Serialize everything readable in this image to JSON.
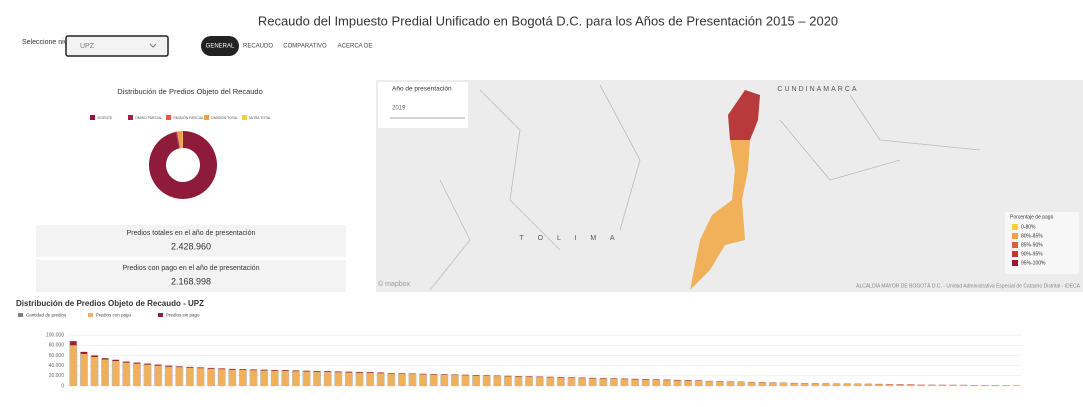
{
  "header": {
    "title": "Recaudo del Impuesto Predial Unificado en Bogotá D.C. para los Años de Presentación 2015 – 2020",
    "selector_label": "Seleccione nivel territorial",
    "selector_value": "UPZ",
    "tabs": [
      "GENERAL",
      "RECAUDO",
      "COMPARATIVO",
      "ACERCA DE"
    ]
  },
  "stats": [
    {
      "label": "Predios totales en el año de presentación",
      "value": "2.428.960"
    },
    {
      "label": "Predios con pago en el año de presentación",
      "value": "2.168.998"
    }
  ],
  "map": {
    "year_label": "Año de presentación",
    "year_value": "2019",
    "regions": [
      "CUNDINAMARCA",
      "T O L I M A"
    ],
    "legend_title": "Porcentaje de pago",
    "legend": [
      "0-80%",
      "80%-85%",
      "85%-90%",
      "90%-95%",
      "95%-100%"
    ],
    "legend_colors": [
      "#f4d03f",
      "#f0a04b",
      "#e05c3a",
      "#c0392b",
      "#8e1b2e"
    ],
    "attribution": "© mapbox",
    "credit": "ALCALDÍA MAYOR DE BOGOTÁ D.C. - Unidad Administrativa Especial de Catastro Distrital - IDECA"
  },
  "chart_data": [
    {
      "type": "pie",
      "title": "Distribución de Predios Objeto del Recaudo",
      "categories": [
        "VIGENTE",
        "OMISO PARCIAL",
        "OMISIÓN PARCIAL",
        "OMISIÓN TOTAL",
        "MORA TOTAL"
      ],
      "values": [
        96.5,
        0.5,
        0.3,
        2.5,
        0.2
      ],
      "colors": [
        "#8e1b3a",
        "#a51f45",
        "#e05c3a",
        "#f0a04b",
        "#f4d03f"
      ]
    },
    {
      "type": "bar",
      "title": "Distribución de Predios Objeto de Recaudo - UPZ",
      "stacked": true,
      "ylim": [
        0,
        110000
      ],
      "yticks": [
        0,
        {
          "value": 20000,
          "label": "20.000"
        },
        {
          "value": 40000,
          "label": "40.000"
        },
        {
          "value": 60000,
          "label": "60.000"
        },
        {
          "value": 80000,
          "label": "80.000"
        },
        {
          "value": 100000,
          "label": "100.000"
        }
      ],
      "grid": true,
      "series": [
        {
          "name": "Cantidad de predios",
          "color": "#7f7f7f",
          "stack": false,
          "values": [
            88000,
            67000,
            60000,
            54500,
            51500,
            48000,
            46000,
            44000,
            42000,
            40000,
            38500,
            37500,
            36500,
            35500,
            34500,
            33500,
            33000,
            32500,
            32000,
            31500,
            31000,
            30500,
            30000,
            29500,
            29000,
            28500,
            28000,
            27500,
            27000,
            26500,
            25500,
            25000,
            24500,
            24000,
            23500,
            23000,
            22500,
            22000,
            21500,
            21000,
            20500,
            20000,
            19500,
            19000,
            18500,
            18000,
            17500,
            17000,
            16500,
            16000,
            15500,
            15000,
            14500,
            14000,
            13500,
            13000,
            12500,
            12000,
            11500,
            11000,
            10000,
            9500,
            9000,
            8500,
            8000,
            7500,
            7000,
            6500,
            6000,
            5500,
            5300,
            5100,
            4900,
            4700,
            4500,
            4300,
            4100,
            3900,
            3700,
            3500,
            3000,
            2800,
            2600,
            2400,
            2200,
            2000,
            1800,
            1600,
            1400,
            1200
          ]
        },
        {
          "name": "Predios con pago",
          "color": "#f0b15a",
          "stack": true,
          "values": [
            80000,
            63000,
            57000,
            52000,
            49000,
            46000,
            44000,
            42000,
            40000,
            38000,
            37000,
            36000,
            35000,
            34000,
            33000,
            32000,
            31500,
            31000,
            30500,
            30000,
            29500,
            29000,
            28500,
            28000,
            27500,
            27000,
            26500,
            26000,
            25500,
            25000,
            24500,
            24000,
            23500,
            23000,
            22500,
            22000,
            21500,
            21000,
            20500,
            20000,
            19500,
            19000,
            18500,
            18000,
            17500,
            17000,
            16500,
            16000,
            15500,
            15000,
            14500,
            14000,
            13500,
            13000,
            12500,
            12000,
            11500,
            11000,
            10500,
            10000,
            9500,
            9000,
            8500,
            8000,
            7500,
            7000,
            6500,
            6000,
            5500,
            5000,
            4800,
            4600,
            4400,
            4200,
            4000,
            3800,
            3600,
            3400,
            3200,
            3000,
            2800,
            2600,
            2400,
            2200,
            2000,
            1800,
            1600,
            1400,
            1200,
            1000
          ]
        },
        {
          "name": "Predios sin pago",
          "color": "#9b1b3a",
          "stack": true,
          "values": [
            8000,
            4000,
            3000,
            2500,
            2500,
            2000,
            2000,
            2000,
            2000,
            2000,
            1500,
            1500,
            1500,
            1500,
            1500,
            1500,
            1500,
            1500,
            1500,
            1500,
            1500,
            1500,
            1500,
            1500,
            1500,
            1500,
            1500,
            1500,
            1500,
            1500,
            1000,
            1000,
            1000,
            1000,
            1000,
            1000,
            1000,
            1000,
            1000,
            1000,
            1000,
            1000,
            1000,
            1000,
            1000,
            1000,
            1000,
            1000,
            1000,
            1000,
            1000,
            1000,
            1000,
            1000,
            1000,
            1000,
            1000,
            1000,
            1000,
            1000,
            500,
            500,
            500,
            500,
            500,
            500,
            500,
            500,
            500,
            500,
            500,
            500,
            500,
            500,
            500,
            500,
            500,
            500,
            500,
            500,
            200,
            200,
            200,
            200,
            200,
            200,
            200,
            200,
            200,
            200
          ]
        }
      ]
    }
  ]
}
